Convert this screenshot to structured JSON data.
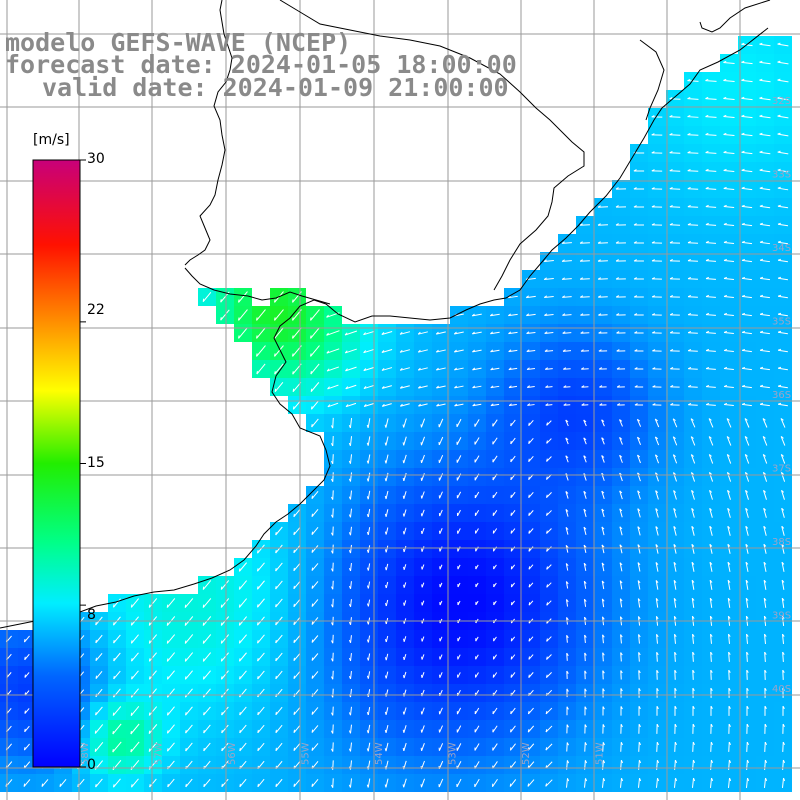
{
  "title": {
    "line1": "modelo GEFS-WAVE (NCEP)",
    "line2": "forecast date: 2024-01-05 18:00:00",
    "line3": "valid date: 2024-01-09 21:00:00"
  },
  "colorbar": {
    "unit": "[m/s]",
    "min": 0,
    "max": 30,
    "tick_labels": [
      "30",
      "22",
      "15",
      "8",
      "0"
    ],
    "tick_values": [
      30,
      22,
      15,
      8,
      0
    ],
    "colors": [
      "#0000ff",
      "#0088ff",
      "#00ffff",
      "#00ff00",
      "#ffff00",
      "#ff8800",
      "#ff0000",
      "#cc0088"
    ]
  },
  "map": {
    "land_color": "#ffffff",
    "coast_color": "#000000",
    "grid_color": "#9a9a9a",
    "grid_labels_right": [
      "32S",
      "33S",
      "34S",
      "35S",
      "36S",
      "37S",
      "38S",
      "39S",
      "40S"
    ],
    "grid_labels_bottom": [
      "58W",
      "57W",
      "56W",
      "55W",
      "54W",
      "53W",
      "52W",
      "51W"
    ],
    "arrow_color": "#ffffff"
  }
}
